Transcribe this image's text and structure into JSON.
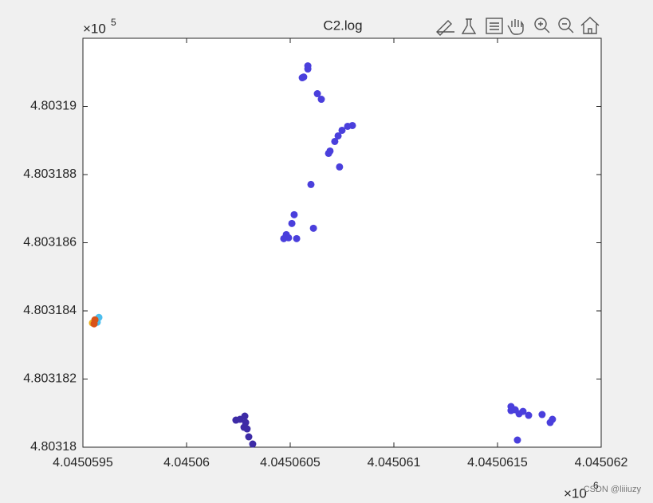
{
  "chart_data": {
    "type": "scatter",
    "title": "C2.log",
    "x_exponent": {
      "base": "×10",
      "power": "6"
    },
    "y_exponent": {
      "base": "×10",
      "power": "5"
    },
    "xlim": [
      4.0450595,
      4.045062
    ],
    "xticks": [
      4.0450595,
      4.04506,
      4.0450605,
      4.045061,
      4.0450615,
      4.045062
    ],
    "ylim": [
      4.80318,
      4.803192
    ],
    "yticks": [
      4.80318,
      4.803182,
      4.803184,
      4.803186,
      4.803188,
      4.80319
    ],
    "series": [
      {
        "color": "#3d2ba6",
        "x": [
          4.045060238,
          4.045060258,
          4.045060281,
          4.045060285,
          4.045060277,
          4.045060292,
          4.0450603,
          4.045060319
        ],
        "values": [
          4.803180794,
          4.803180818,
          4.803180911,
          4.803180724,
          4.803180584,
          4.803180537,
          4.803180304,
          4.803180093
        ]
      },
      {
        "color": "#4a3fdc",
        "x": [
          4.045060585,
          4.045060585,
          4.045060565,
          4.045060558,
          4.045060631,
          4.04506065,
          4.0450608,
          4.045060777,
          4.04506075,
          4.045060731,
          4.045060715,
          4.045060692,
          4.045060685,
          4.045060738,
          4.0450606,
          4.045060519,
          4.045060508,
          4.045060612,
          4.045060481,
          4.045060469,
          4.045060492,
          4.045060531,
          4.045061565,
          4.045061565,
          4.045061585,
          4.045061604,
          4.045061623,
          4.04506165,
          4.045061715,
          4.045061765,
          4.045061754,
          4.045061596
        ],
        "values": [
          4.803191191,
          4.803191098,
          4.803190864,
          4.803190841,
          4.803190374,
          4.80319021,
          4.803189439,
          4.803189416,
          4.803189299,
          4.803189135,
          4.803188972,
          4.803188691,
          4.803188621,
          4.803188224,
          4.80318771,
          4.803186822,
          4.803186565,
          4.803186425,
          4.803186238,
          4.803186121,
          4.803186145,
          4.803186121,
          4.803181192,
          4.803181075,
          4.803181098,
          4.803180981,
          4.803181051,
          4.803180935,
          4.803180958,
          4.803180818,
          4.803180724,
          4.80318021
        ]
      },
      {
        "color": "#4dbeee",
        "x": [
          4.045059577,
          4.045059569
        ],
        "values": [
          4.803183808,
          4.803183668
        ]
      },
      {
        "color": "#edb120",
        "x": [
          4.045059546
        ],
        "values": [
          4.803183645
        ]
      },
      {
        "color": "#d95319",
        "x": [
          4.045059558,
          4.045059554
        ],
        "values": [
          4.803183738,
          4.803183621
        ]
      }
    ],
    "watermark": "CSDN @liiiuzy"
  }
}
